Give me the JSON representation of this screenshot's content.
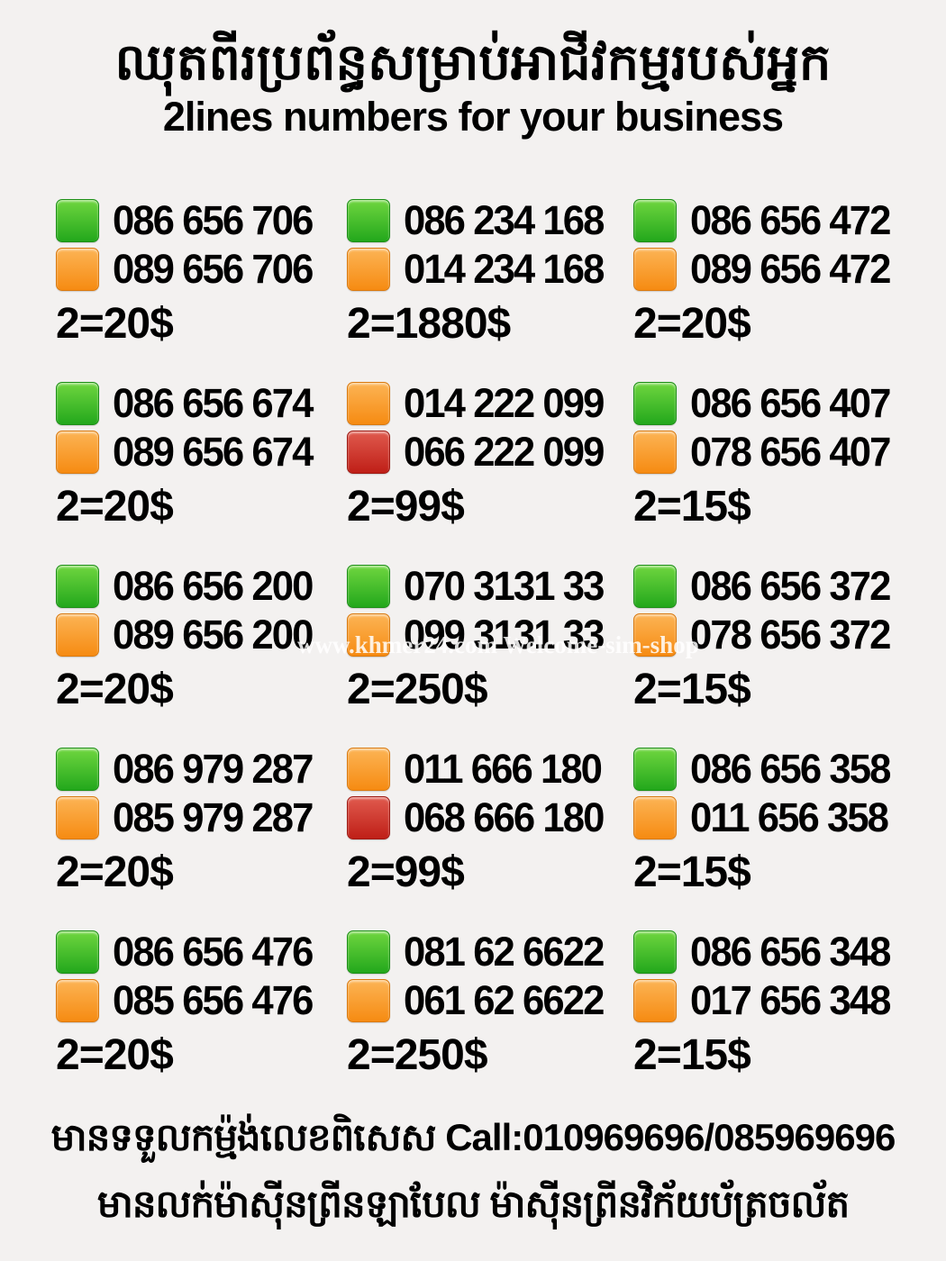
{
  "page": {
    "title_khmer": "ឈុតពីរប្រព័ន្ធសម្រាប់អាជីវកម្មរបស់អ្នក",
    "subtitle": "2lines numbers for your business"
  },
  "colors": {
    "green": "#23a81c",
    "orange": "#f68b12",
    "red": "#bf1f17",
    "background": "#f3f1f0",
    "text": "#000000"
  },
  "watermark": "www.khmer24.com Welcome-sim-shop",
  "listings": [
    {
      "lines": [
        {
          "color": "green",
          "number": "086 656 706"
        },
        {
          "color": "orange",
          "number": "089 656 706"
        }
      ],
      "price": "2=20$"
    },
    {
      "lines": [
        {
          "color": "green",
          "number": "086 234 168"
        },
        {
          "color": "orange",
          "number": "014 234 168"
        }
      ],
      "price": "2=1880$"
    },
    {
      "lines": [
        {
          "color": "green",
          "number": "086 656 472"
        },
        {
          "color": "orange",
          "number": "089 656 472"
        }
      ],
      "price": "2=20$"
    },
    {
      "lines": [
        {
          "color": "green",
          "number": "086 656 674"
        },
        {
          "color": "orange",
          "number": "089 656 674"
        }
      ],
      "price": "2=20$"
    },
    {
      "lines": [
        {
          "color": "orange",
          "number": "014 222 099"
        },
        {
          "color": "red",
          "number": "066 222 099"
        }
      ],
      "price": "2=99$"
    },
    {
      "lines": [
        {
          "color": "green",
          "number": "086 656 407"
        },
        {
          "color": "orange",
          "number": "078 656 407"
        }
      ],
      "price": "2=15$"
    },
    {
      "lines": [
        {
          "color": "green",
          "number": "086 656 200"
        },
        {
          "color": "orange",
          "number": "089 656 200"
        }
      ],
      "price": "2=20$"
    },
    {
      "lines": [
        {
          "color": "green",
          "number": "070 3131 33"
        },
        {
          "color": "orange",
          "number": "099 3131 33"
        }
      ],
      "price": "2=250$"
    },
    {
      "lines": [
        {
          "color": "green",
          "number": "086 656 372"
        },
        {
          "color": "orange",
          "number": "078 656 372"
        }
      ],
      "price": "2=15$"
    },
    {
      "lines": [
        {
          "color": "green",
          "number": "086 979 287"
        },
        {
          "color": "orange",
          "number": "085 979 287"
        }
      ],
      "price": "2=20$"
    },
    {
      "lines": [
        {
          "color": "orange",
          "number": "011 666 180"
        },
        {
          "color": "red",
          "number": "068 666 180"
        }
      ],
      "price": "2=99$"
    },
    {
      "lines": [
        {
          "color": "green",
          "number": "086 656 358"
        },
        {
          "color": "orange",
          "number": "011 656 358"
        }
      ],
      "price": "2=15$"
    },
    {
      "lines": [
        {
          "color": "green",
          "number": "086 656 476"
        },
        {
          "color": "orange",
          "number": "085 656 476"
        }
      ],
      "price": "2=20$"
    },
    {
      "lines": [
        {
          "color": "green",
          "number": "081 62 6622"
        },
        {
          "color": "orange",
          "number": "061 62 6622"
        }
      ],
      "price": "2=250$"
    },
    {
      "lines": [
        {
          "color": "green",
          "number": "086 656 348"
        },
        {
          "color": "orange",
          "number": "017 656 348"
        }
      ],
      "price": "2=15$"
    }
  ],
  "footer": {
    "line1_khmer": "មានទទួលកម្ម៉ង់លេខពិសេស",
    "line1_call": "Call:010969696/085969696",
    "line2_khmer": "មានលក់ម៉ាស៊ីនព្រីនឡាបែល ម៉ាស៊ីនព្រីនវិក័យប័ត្រចល័ត"
  }
}
